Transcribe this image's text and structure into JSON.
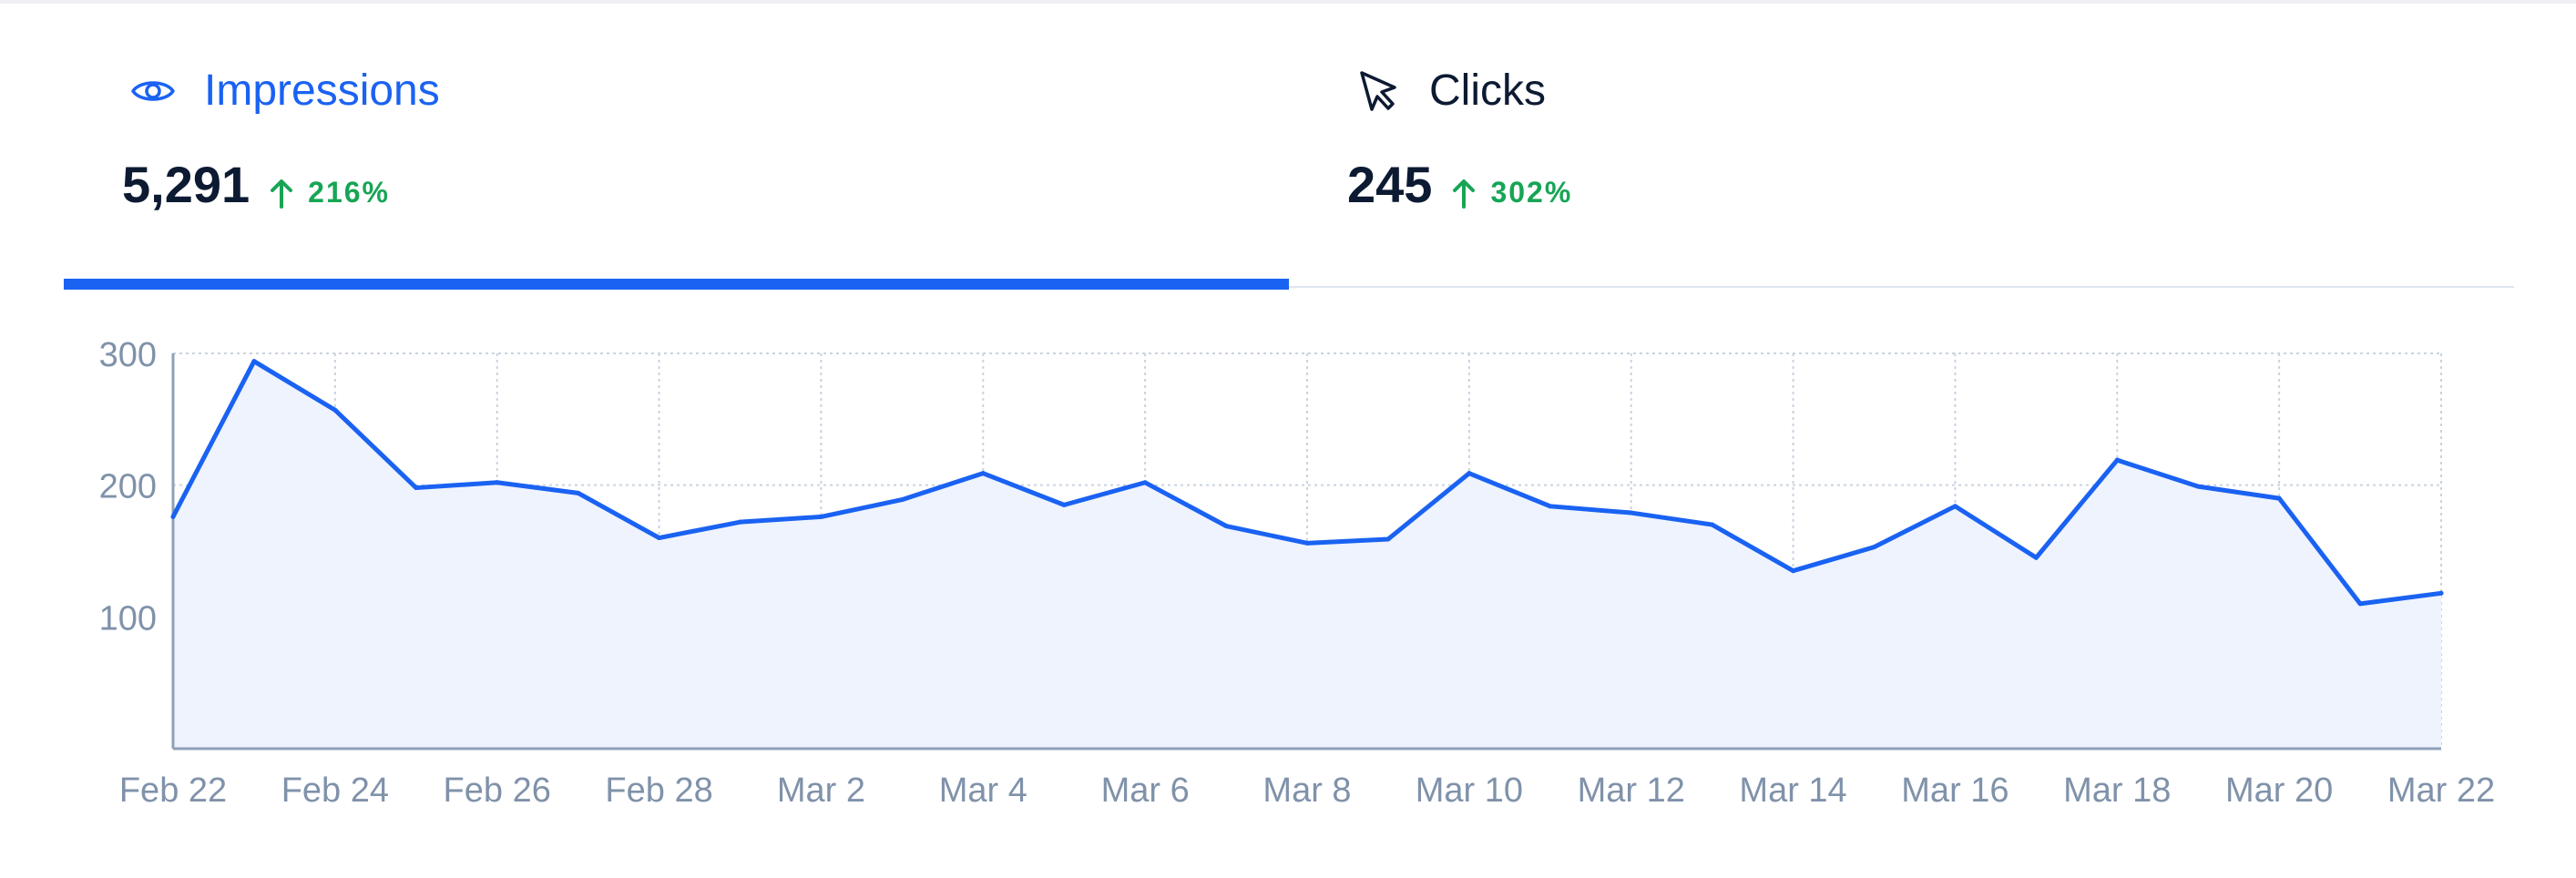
{
  "tabs": [
    {
      "label": "Impressions",
      "value": "5,291",
      "change": "216%",
      "icon": "eye-icon",
      "selected": true
    },
    {
      "label": "Clicks",
      "value": "245",
      "change": "302%",
      "icon": "cursor-arrow-icon",
      "selected": false
    }
  ],
  "colors": {
    "accent": "#1a62f2",
    "positive": "#17a555",
    "text_dark": "#0c1a32",
    "axis_text": "#8092aa",
    "area_fill": "#eef3fd"
  },
  "chart_data": {
    "type": "area",
    "x_tick_labels": [
      "Feb 22",
      "Feb 24",
      "Feb 26",
      "Feb 28",
      "Mar 2",
      "Mar 4",
      "Mar 6",
      "Mar 8",
      "Mar 10",
      "Mar 12",
      "Mar 14",
      "Mar 16",
      "Mar 18",
      "Mar 20",
      "Mar 22"
    ],
    "y_tick_labels": [
      "300",
      "200",
      "100"
    ],
    "yticks": [
      300,
      200,
      100
    ],
    "ylim": [
      0,
      300
    ],
    "grid": true,
    "series": [
      {
        "values": [
          176,
          294,
          257,
          198,
          202,
          194,
          160,
          172,
          176,
          189,
          209,
          185,
          202,
          169,
          156,
          159,
          209,
          184,
          179,
          170,
          135,
          153,
          184,
          145,
          219,
          199,
          190,
          110,
          118
        ]
      }
    ]
  }
}
